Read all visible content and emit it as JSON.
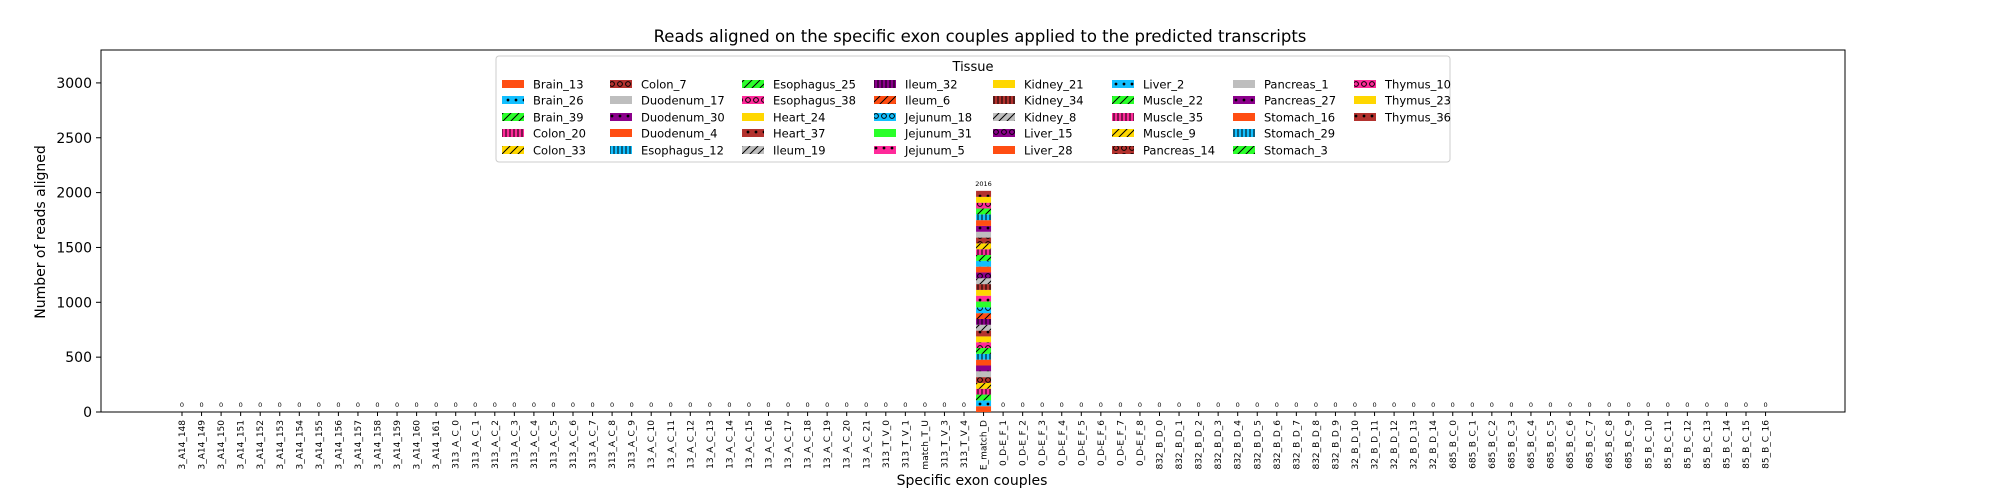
{
  "chart_data": {
    "type": "bar",
    "title": "Reads aligned on the specific exon couples applied to the predicted transcripts",
    "xlabel": "Specific exon couples",
    "ylabel": "Number of reads aligned",
    "ylim": [
      0,
      3300
    ],
    "yticks": [
      0,
      500,
      1000,
      1500,
      2000,
      2500,
      3000
    ],
    "grid": false,
    "legend_title": "Tissue",
    "legend_position": "top-center",
    "categories": [
      "3_A14_148",
      "3_A14_149",
      "3_A14_150",
      "3_A14_151",
      "3_A14_152",
      "3_A14_153",
      "3_A14_154",
      "3_A14_155",
      "3_A14_156",
      "3_A14_157",
      "3_A14_158",
      "3_A14_159",
      "3_A14_160",
      "3_A14_161",
      "313_A_C_0",
      "313_A_C_1",
      "313_A_C_2",
      "313_A_C_3",
      "313_A_C_4",
      "313_A_C_5",
      "313_A_C_6",
      "313_A_C_7",
      "313_A_C_8",
      "313_A_C_9",
      "13_A_C_10",
      "13_A_C_11",
      "13_A_C_12",
      "13_A_C_13",
      "13_A_C_14",
      "13_A_C_15",
      "13_A_C_16",
      "13_A_C_17",
      "13_A_C_18",
      "13_A_C_19",
      "13_A_C_20",
      "13_A_C_21",
      "313_T_V_0",
      "313_T_V_1",
      "match_T_U",
      "313_T_V_3",
      "313_T_V_4",
      "E_match_D",
      "0_D-E_F_1",
      "0_D-E_F_2",
      "0_D-E_F_3",
      "0_D-E_F_4",
      "0_D-E_F_5",
      "0_D-E_F_6",
      "0_D-E_F_7",
      "0_D-E_F_8",
      "832_B_D_0",
      "832_B_D_1",
      "832_B_D_2",
      "832_B_D_3",
      "832_B_D_4",
      "832_B_D_5",
      "832_B_D_6",
      "832_B_D_7",
      "832_B_D_8",
      "832_B_D_9",
      "32_B_D_10",
      "32_B_D_11",
      "32_B_D_12",
      "32_B_D_13",
      "32_B_D_14",
      "685_B_C_0",
      "685_B_C_1",
      "685_B_C_2",
      "685_B_C_3",
      "685_B_C_4",
      "685_B_C_5",
      "685_B_C_6",
      "685_B_C_7",
      "685_B_C_8",
      "685_B_C_9",
      "85_B_C_10",
      "85_B_C_11",
      "85_B_C_12",
      "85_B_C_13",
      "85_B_C_14",
      "85_B_C_15",
      "85_B_C_16"
    ],
    "totals": [
      0,
      0,
      0,
      0,
      0,
      0,
      0,
      0,
      0,
      0,
      0,
      0,
      0,
      0,
      0,
      0,
      0,
      0,
      0,
      0,
      0,
      0,
      0,
      0,
      0,
      0,
      0,
      0,
      0,
      0,
      0,
      0,
      0,
      0,
      0,
      0,
      0,
      0,
      0,
      0,
      0,
      2016,
      0,
      0,
      0,
      0,
      0,
      0,
      0,
      0,
      0,
      0,
      0,
      0,
      0,
      0,
      0,
      0,
      0,
      0,
      0,
      0,
      0,
      0,
      0,
      0,
      0,
      0,
      0,
      0,
      0,
      0,
      0,
      0,
      0,
      0,
      0,
      0,
      0,
      0,
      0,
      0
    ],
    "bar_labels": [
      "0",
      "0",
      "0",
      "0",
      "0",
      "0",
      "0",
      "0",
      "0",
      "0",
      "0",
      "0",
      "0",
      "0",
      "0",
      "0",
      "0",
      "0",
      "0",
      "0",
      "0",
      "0",
      "0",
      "0",
      "0",
      "0",
      "0",
      "0",
      "0",
      "0",
      "0",
      "0",
      "0",
      "0",
      "0",
      "0",
      "0",
      "0",
      "0",
      "0",
      "0",
      "2016",
      "0",
      "0",
      "0",
      "0",
      "0",
      "0",
      "0",
      "0",
      "0",
      "0",
      "0",
      "0",
      "0",
      "0",
      "0",
      "0",
      "0",
      "0",
      "0",
      "0",
      "0",
      "0",
      "0",
      "0",
      "0",
      "0",
      "0",
      "0",
      "0",
      "0",
      "0",
      "0",
      "0",
      "0",
      "0",
      "0",
      "0",
      "0",
      "0",
      "0"
    ],
    "series": [
      {
        "name": "Brain_13",
        "color": "#ff4d12",
        "hatch": "none",
        "value": 53
      },
      {
        "name": "Brain_26",
        "color": "#12bfff",
        "hatch": "dots",
        "value": 53
      },
      {
        "name": "Brain_39",
        "color": "#2aff2a",
        "hatch": "slash",
        "value": 53
      },
      {
        "name": "Colon_20",
        "color": "#ff2a9a",
        "hatch": "vline",
        "value": 53
      },
      {
        "name": "Colon_33",
        "color": "#ffd700",
        "hatch": "slash",
        "value": 53
      },
      {
        "name": "Colon_7",
        "color": "#b3322e",
        "hatch": "circles",
        "value": 53
      },
      {
        "name": "Duodenum_17",
        "color": "#bebebe",
        "hatch": "none",
        "value": 53
      },
      {
        "name": "Duodenum_30",
        "color": "#8b008b",
        "hatch": "dots",
        "value": 53
      },
      {
        "name": "Duodenum_4",
        "color": "#ff4d12",
        "hatch": "none",
        "value": 53
      },
      {
        "name": "Esophagus_12",
        "color": "#12bfff",
        "hatch": "vline",
        "value": 53
      },
      {
        "name": "Esophagus_25",
        "color": "#2aff2a",
        "hatch": "slash",
        "value": 53
      },
      {
        "name": "Esophagus_38",
        "color": "#ff2a9a",
        "hatch": "circles",
        "value": 53
      },
      {
        "name": "Heart_24",
        "color": "#ffd700",
        "hatch": "none",
        "value": 53
      },
      {
        "name": "Heart_37",
        "color": "#b3322e",
        "hatch": "dots",
        "value": 53
      },
      {
        "name": "Ileum_19",
        "color": "#bebebe",
        "hatch": "slash",
        "value": 53
      },
      {
        "name": "Ileum_32",
        "color": "#8b008b",
        "hatch": "vline",
        "value": 53
      },
      {
        "name": "Ileum_6",
        "color": "#ff4d12",
        "hatch": "slash",
        "value": 53
      },
      {
        "name": "Jejunum_18",
        "color": "#12bfff",
        "hatch": "circles",
        "value": 53
      },
      {
        "name": "Jejunum_31",
        "color": "#2aff2a",
        "hatch": "none",
        "value": 53
      },
      {
        "name": "Jejunum_5",
        "color": "#ff2a9a",
        "hatch": "dots",
        "value": 53
      },
      {
        "name": "Kidney_21",
        "color": "#ffd700",
        "hatch": "none",
        "value": 53
      },
      {
        "name": "Kidney_34",
        "color": "#b3322e",
        "hatch": "vline",
        "value": 53
      },
      {
        "name": "Kidney_8",
        "color": "#bebebe",
        "hatch": "slash",
        "value": 53
      },
      {
        "name": "Liver_15",
        "color": "#8b008b",
        "hatch": "circles",
        "value": 53
      },
      {
        "name": "Liver_28",
        "color": "#ff4d12",
        "hatch": "none",
        "value": 53
      },
      {
        "name": "Liver_2",
        "color": "#12bfff",
        "hatch": "dots",
        "value": 53
      },
      {
        "name": "Muscle_22",
        "color": "#2aff2a",
        "hatch": "slash",
        "value": 53
      },
      {
        "name": "Muscle_35",
        "color": "#ff2a9a",
        "hatch": "vline",
        "value": 53
      },
      {
        "name": "Muscle_9",
        "color": "#ffd700",
        "hatch": "slash",
        "value": 53
      },
      {
        "name": "Pancreas_14",
        "color": "#b3322e",
        "hatch": "circles",
        "value": 53
      },
      {
        "name": "Pancreas_1",
        "color": "#bebebe",
        "hatch": "none",
        "value": 53
      },
      {
        "name": "Pancreas_27",
        "color": "#8b008b",
        "hatch": "dots",
        "value": 53
      },
      {
        "name": "Stomach_16",
        "color": "#ff4d12",
        "hatch": "none",
        "value": 53
      },
      {
        "name": "Stomach_29",
        "color": "#12bfff",
        "hatch": "vline",
        "value": 53
      },
      {
        "name": "Stomach_3",
        "color": "#2aff2a",
        "hatch": "slash",
        "value": 53
      },
      {
        "name": "Thymus_10",
        "color": "#ff2a9a",
        "hatch": "circles",
        "value": 53
      },
      {
        "name": "Thymus_23",
        "color": "#ffd700",
        "hatch": "none",
        "value": 53
      },
      {
        "name": "Thymus_36",
        "color": "#b3322e",
        "hatch": "dots",
        "value": 55
      }
    ]
  }
}
